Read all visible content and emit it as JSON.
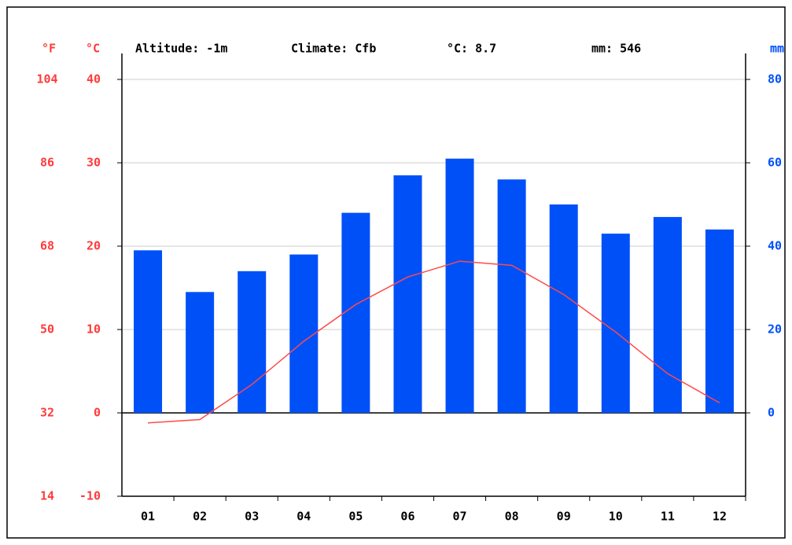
{
  "chart_data": {
    "type": "combo",
    "annotations": [
      "Altitude: -1m",
      "Climate: Cfb",
      "°C: 8.7",
      "mm: 546"
    ],
    "y3_label": "°F",
    "ylabel": "°C",
    "y2label": "mm",
    "categories": [
      "01",
      "02",
      "03",
      "04",
      "05",
      "06",
      "07",
      "08",
      "09",
      "10",
      "11",
      "12"
    ],
    "series": [
      {
        "type": "bar",
        "axis": "y2",
        "color": "#0050f8",
        "values": [
          39,
          29,
          34,
          38,
          48,
          57,
          61,
          56,
          50,
          43,
          47,
          44
        ]
      },
      {
        "type": "line",
        "color": "#ff4a4a",
        "values": [
          -1.2,
          -0.8,
          3.4,
          8.6,
          13.0,
          16.3,
          18.2,
          17.7,
          14.2,
          9.7,
          4.7,
          1.2
        ]
      }
    ],
    "ylim": [
      -10,
      40
    ],
    "yticks": [
      -10,
      0,
      10,
      20,
      30,
      40
    ],
    "y2lim": [
      -20,
      80
    ],
    "y2ticks": [
      0,
      20,
      40,
      60,
      80
    ],
    "y3lim": [
      14,
      104
    ],
    "y3ticks": [
      14,
      32,
      50,
      68,
      86,
      104
    ],
    "temp_color": "#ff3b3b",
    "precip_color": "#0050f8",
    "grid": true
  }
}
